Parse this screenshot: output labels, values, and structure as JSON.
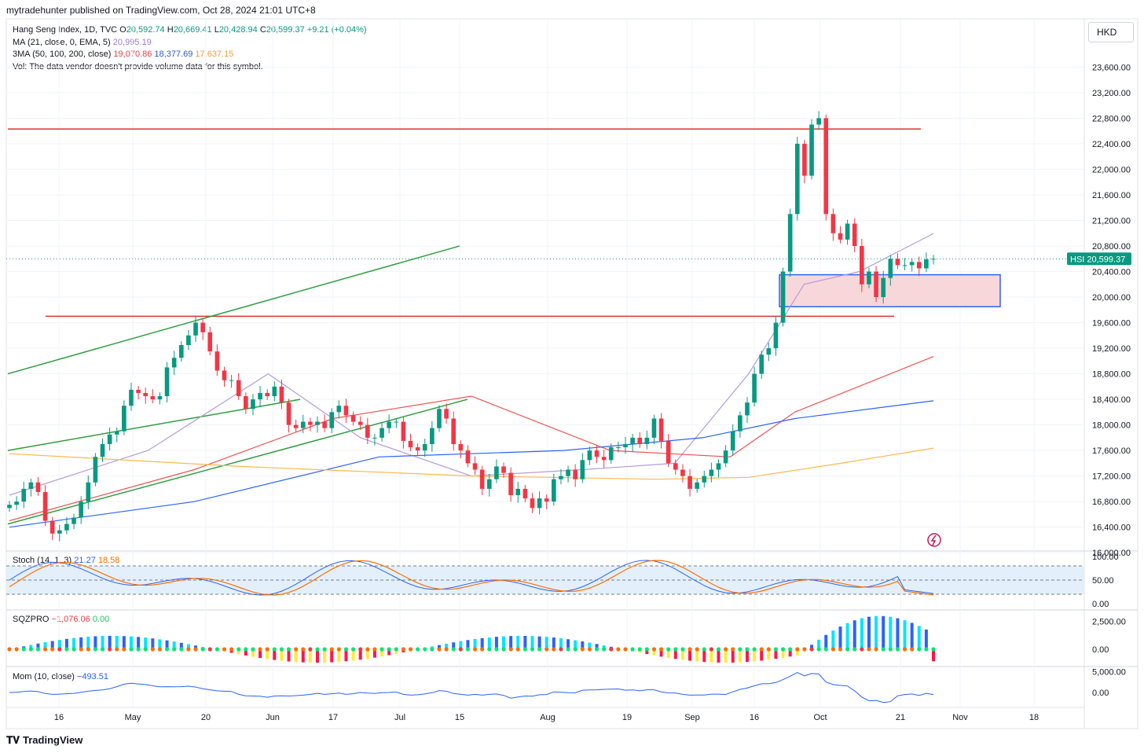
{
  "publisher": "mytradehunter published on TradingView.com, Oct 28, 2024 21:01 UTC+8",
  "branding": {
    "logo_icon": "tradingview-logo-icon",
    "name": "TradingView"
  },
  "currency": "HKD",
  "legend": {
    "symbol_line": {
      "prefix": "Hang Seng Index, 1D, TVC",
      "o_label": "O",
      "o": "20,592.74",
      "h_label": "H",
      "h": "20,669.41",
      "l_label": "L",
      "l": "20,428.94",
      "c_label": "C",
      "c": "20,599.37",
      "change": "+9.21 (+0.04%)"
    },
    "ma_line": {
      "label": "MA (21, close, 0, EMA, 5)",
      "value": "20,995.19"
    },
    "ma3_line": {
      "label": "3MA (50, 100, 200, close)",
      "v50": "19,070.86",
      "v100": "18,377.69",
      "v200": "17,637.15"
    },
    "vol_line": "Vol: The data vendor doesn't provide volume data for this symbol."
  },
  "price_tag": {
    "symbol": "HSI",
    "value": "20,599.37"
  },
  "y_axis_labels": [
    "23,600.00",
    "23,200.00",
    "22,800.00",
    "22,400.00",
    "22,000.00",
    "21,600.00",
    "21,200.00",
    "20,800.00",
    "20,400.00",
    "20,000.00",
    "19,600.00",
    "19,200.00",
    "18,800.00",
    "18,400.00",
    "18,000.00",
    "17,600.00",
    "17,200.00",
    "16,800.00",
    "16,400.00",
    "16,000.00"
  ],
  "x_axis_labels": [
    "16",
    "May",
    "20",
    "Jun",
    "17",
    "Jul",
    "15",
    "Aug",
    "19",
    "Sep",
    "16",
    "Oct",
    "21",
    "Nov",
    "18"
  ],
  "stoch": {
    "label": "Stoch (14, 1, 3)",
    "k": "21.27",
    "d": "18.58",
    "axis": [
      "100.00",
      "50.00",
      "0.00"
    ]
  },
  "sqz": {
    "label": "SQZPRO",
    "value": "−1,076.06",
    "value2": "0.00",
    "axis": [
      "2,500.00",
      "0.00"
    ]
  },
  "mom": {
    "label": "Mom (10, close)",
    "value": "−493.51",
    "axis": [
      "5,000.00",
      "0.00"
    ]
  },
  "colors": {
    "up": "#089981",
    "down": "#f23645",
    "ema21": "#b39ddb",
    "ma50": "#ef5350",
    "ma100": "#2962ff",
    "ma200": "#ffb74d",
    "stoch_k": "#2962ff",
    "stoch_d": "#ff6d00",
    "zone_fill": "#f8d7da",
    "zone_border": "#2962ff",
    "resistance": "#e03030",
    "channel": "#2e9e3e"
  },
  "chart_data": {
    "type": "candlestick",
    "symbol": "HSI",
    "title": "Hang Seng Index, 1D, TVC",
    "interval": "1D",
    "ylim": [
      15900,
      23800
    ],
    "period": {
      "start": "2024-04-11",
      "end": "2024-10-28"
    },
    "ohlc": {
      "open": [
        16700,
        16750,
        16800,
        17000,
        17100,
        16950,
        16500,
        16300,
        16350,
        16450,
        16550,
        16800,
        17100,
        17500,
        17700,
        17850,
        17900,
        18300,
        18550,
        18500,
        18450,
        18400,
        18450,
        18900,
        19050,
        19250,
        19400,
        19600,
        19450,
        19150,
        18850,
        18700,
        18700,
        18450,
        18250,
        18400,
        18500,
        18450,
        18600,
        18350,
        18000,
        17950,
        18050,
        18000,
        18050,
        17950,
        18200,
        18300,
        18150,
        18050,
        18000,
        17800,
        17800,
        17950,
        18050,
        18050,
        17750,
        17650,
        17600,
        17700,
        17950,
        18250,
        18100,
        17700,
        17600,
        17400,
        17300,
        17000,
        17150,
        17350,
        17250,
        16900,
        17000,
        16850,
        16700,
        16850,
        16800,
        17150,
        17200,
        17300,
        17150,
        17450,
        17600,
        17500,
        17450,
        17650,
        17650,
        17700,
        17800,
        17700,
        17800,
        18100,
        17750,
        17400,
        17300,
        17200,
        17000,
        17100,
        17200,
        17300,
        17400,
        17600,
        17900,
        18150,
        18350,
        18800,
        19100,
        19200,
        19600,
        20400,
        21300,
        22400,
        21900,
        22700,
        22800,
        21300,
        21000,
        20900,
        21150,
        20800,
        20200,
        20400,
        20000,
        20300,
        20600,
        20500,
        20500,
        20550,
        20450,
        20590
      ],
      "close": [
        16750,
        16800,
        17000,
        17100,
        16950,
        16500,
        16300,
        16350,
        16450,
        16550,
        16800,
        17100,
        17500,
        17700,
        17850,
        17900,
        18300,
        18550,
        18500,
        18450,
        18400,
        18450,
        18900,
        19050,
        19250,
        19400,
        19600,
        19450,
        19150,
        18850,
        18700,
        18700,
        18450,
        18250,
        18400,
        18500,
        18450,
        18600,
        18350,
        18000,
        17950,
        18050,
        18000,
        18050,
        17950,
        18200,
        18300,
        18150,
        18050,
        18000,
        17800,
        17800,
        17950,
        18050,
        18050,
        17750,
        17650,
        17600,
        17700,
        17950,
        18250,
        18100,
        17700,
        17600,
        17400,
        17300,
        17000,
        17150,
        17350,
        17250,
        16900,
        17000,
        16850,
        16700,
        16850,
        16800,
        17150,
        17200,
        17300,
        17150,
        17450,
        17600,
        17500,
        17450,
        17650,
        17650,
        17700,
        17800,
        17700,
        17800,
        18100,
        17750,
        17400,
        17300,
        17200,
        17000,
        17100,
        17200,
        17300,
        17400,
        17600,
        17900,
        18150,
        18350,
        18800,
        19100,
        19200,
        19600,
        20400,
        21300,
        22400,
        21900,
        22700,
        22800,
        21300,
        21000,
        20900,
        21150,
        20800,
        20200,
        20400,
        20000,
        20300,
        20600,
        20500,
        20500,
        20550,
        20450,
        20590,
        20599
      ]
    },
    "overlays": [
      {
        "name": "MA (21, close, 0, EMA, 5)",
        "x_frac": [
          0,
          0.15,
          0.28,
          0.38,
          0.5,
          0.62,
          0.72,
          0.8,
          0.86,
          0.92,
          1
        ],
        "values": [
          16900,
          17600,
          18800,
          17800,
          17200,
          17300,
          17400,
          18800,
          20200,
          20400,
          20995
        ]
      },
      {
        "name": "MA 50",
        "x_frac": [
          0,
          0.2,
          0.35,
          0.5,
          0.65,
          0.78,
          0.85,
          1
        ],
        "values": [
          16500,
          17300,
          18100,
          18450,
          17600,
          17500,
          18200,
          19070
        ]
      },
      {
        "name": "MA 100",
        "x_frac": [
          0,
          0.2,
          0.4,
          0.6,
          0.75,
          0.85,
          1
        ],
        "values": [
          16400,
          16800,
          17500,
          17600,
          17800,
          18100,
          18378
        ]
      },
      {
        "name": "MA 200",
        "x_frac": [
          0,
          0.25,
          0.5,
          0.7,
          0.8,
          0.9,
          1
        ],
        "values": [
          17550,
          17350,
          17200,
          17150,
          17180,
          17400,
          17637
        ]
      }
    ],
    "annotations": {
      "horizontal_lines": [
        {
          "price": 22630,
          "style": "resistance"
        },
        {
          "price": 19700,
          "style": "resistance"
        }
      ],
      "zone": {
        "top": 20350,
        "bottom": 19850,
        "label": ""
      },
      "channels": [
        {
          "start_price": 18800,
          "end_price": 20800
        },
        {
          "start_price": 17600,
          "end_price": 18400
        },
        {
          "start_price": 16450,
          "end_price": 18400
        }
      ]
    },
    "stoch_data": {
      "k_last": 21.27,
      "d_last": 18.58,
      "ylim": [
        0,
        100
      ],
      "bands": [
        80,
        20
      ]
    },
    "sqzpro_data": {
      "last": -1076.06,
      "ylim": [
        -1500,
        3000
      ]
    },
    "mom_data": {
      "last": -493.51,
      "ylim": [
        -3000,
        6000
      ]
    }
  }
}
